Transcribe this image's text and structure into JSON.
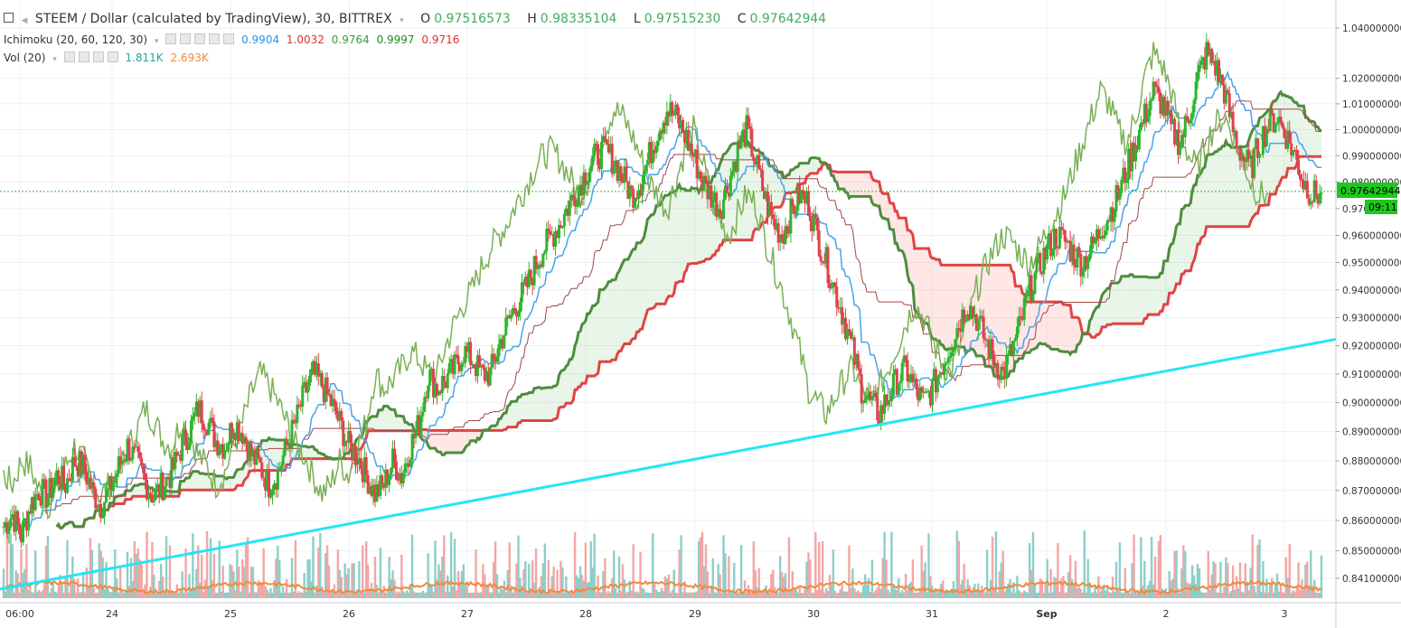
{
  "header": {
    "symbol_title": "STEEM / Dollar (calculated by TradingView), 30, BITTREX",
    "open_label": "O",
    "open_value": "0.97516573",
    "high_label": "H",
    "high_value": "0.98335104",
    "low_label": "L",
    "low_value": "0.97515230",
    "close_label": "C",
    "close_value": "0.97642944"
  },
  "indicators": {
    "ichimoku": {
      "label": "Ichimoku (20, 60, 120, 30)",
      "values": [
        "0.9904",
        "1.0032",
        "0.9764",
        "0.9997",
        "0.9716"
      ],
      "colors": [
        "#2196f3",
        "#e03030",
        "#3a9a3a",
        "#1e8c1e",
        "#e03030"
      ]
    },
    "volume": {
      "label": "Vol (20)",
      "values": [
        "1.811K",
        "2.693K"
      ],
      "colors": [
        "#26a69a",
        "#f48a3a"
      ]
    }
  },
  "price_badge": {
    "value": "0.97642944",
    "countdown": "09:11",
    "color": "#1ec81e"
  },
  "colors": {
    "up": "#2db52d",
    "down": "#e0414f",
    "trendline": "#25e5f5",
    "tenkan": "#4aa3e8",
    "kijun": "#a04848",
    "chikou": "#7ab055",
    "span_a": "#4e8c3e",
    "span_b": "#e04444",
    "vol_up": "#8ccfc8",
    "vol_down": "#f3a6a6",
    "vol_ma": "#f08a3c",
    "grid": "#eef1f4"
  },
  "chart_data": {
    "type": "candlestick",
    "x_ticks": [
      "06:00",
      "24",
      "25",
      "26",
      "27",
      "28",
      "29",
      "30",
      "31",
      "Sep",
      "2",
      "3"
    ],
    "y_ticks": [
      "1.040000000",
      "1.020000000",
      "1.010000000",
      "1.000000000",
      "0.990000000",
      "0.980000000",
      "0.970",
      "0.960000000",
      "0.950000000",
      "0.940000000",
      "0.930000000",
      "0.920000000",
      "0.910000000",
      "0.900000000",
      "0.890000000",
      "0.880000000",
      "0.870000000",
      "0.860000000",
      "0.850000000",
      "0.841000000"
    ],
    "y_log_scale": true,
    "last_price": 0.97642944,
    "close_series": [
      0.858,
      0.862,
      0.855,
      0.865,
      0.87,
      0.868,
      0.875,
      0.872,
      0.88,
      0.878,
      0.87,
      0.865,
      0.87,
      0.878,
      0.885,
      0.88,
      0.873,
      0.868,
      0.872,
      0.876,
      0.884,
      0.89,
      0.898,
      0.894,
      0.887,
      0.885,
      0.893,
      0.89,
      0.882,
      0.878,
      0.872,
      0.876,
      0.885,
      0.893,
      0.903,
      0.91,
      0.906,
      0.9,
      0.893,
      0.885,
      0.882,
      0.875,
      0.869,
      0.872,
      0.88,
      0.875,
      0.885,
      0.893,
      0.91,
      0.905,
      0.908,
      0.912,
      0.918,
      0.915,
      0.91,
      0.91,
      0.92,
      0.928,
      0.935,
      0.94,
      0.948,
      0.955,
      0.96,
      0.965,
      0.972,
      0.978,
      0.985,
      0.99,
      0.992,
      0.988,
      0.982,
      0.975,
      0.98,
      0.99,
      1.0,
      1.008,
      1.005,
      0.998,
      0.99,
      0.98,
      0.975,
      0.97,
      0.98,
      0.992,
      1.0,
      0.988,
      0.975,
      0.965,
      0.96,
      0.968,
      0.975,
      0.972,
      0.96,
      0.95,
      0.94,
      0.93,
      0.918,
      0.905,
      0.9,
      0.896,
      0.902,
      0.908,
      0.912,
      0.905,
      0.9,
      0.905,
      0.912,
      0.92,
      0.928,
      0.935,
      0.93,
      0.922,
      0.915,
      0.91,
      0.918,
      0.928,
      0.94,
      0.948,
      0.955,
      0.96,
      0.958,
      0.953,
      0.95,
      0.955,
      0.962,
      0.968,
      0.975,
      0.985,
      0.995,
      1.005,
      1.015,
      1.01,
      1.0,
      0.995,
      1.005,
      1.02,
      1.03,
      1.025,
      1.015,
      1.0,
      0.99,
      0.985,
      0.995,
      1.002,
      1.005,
      0.998,
      0.99,
      0.98,
      0.975,
      0.976
    ],
    "trendline": {
      "start": {
        "x": "06:00",
        "y": 0.841
      },
      "end": {
        "x": "3",
        "y": 0.921
      }
    },
    "legend_series": [
      "Ichimoku (20, 60, 120, 30)",
      "Vol (20)"
    ],
    "volume_ma_last": "2.693K",
    "volume_last": "1.811K"
  }
}
